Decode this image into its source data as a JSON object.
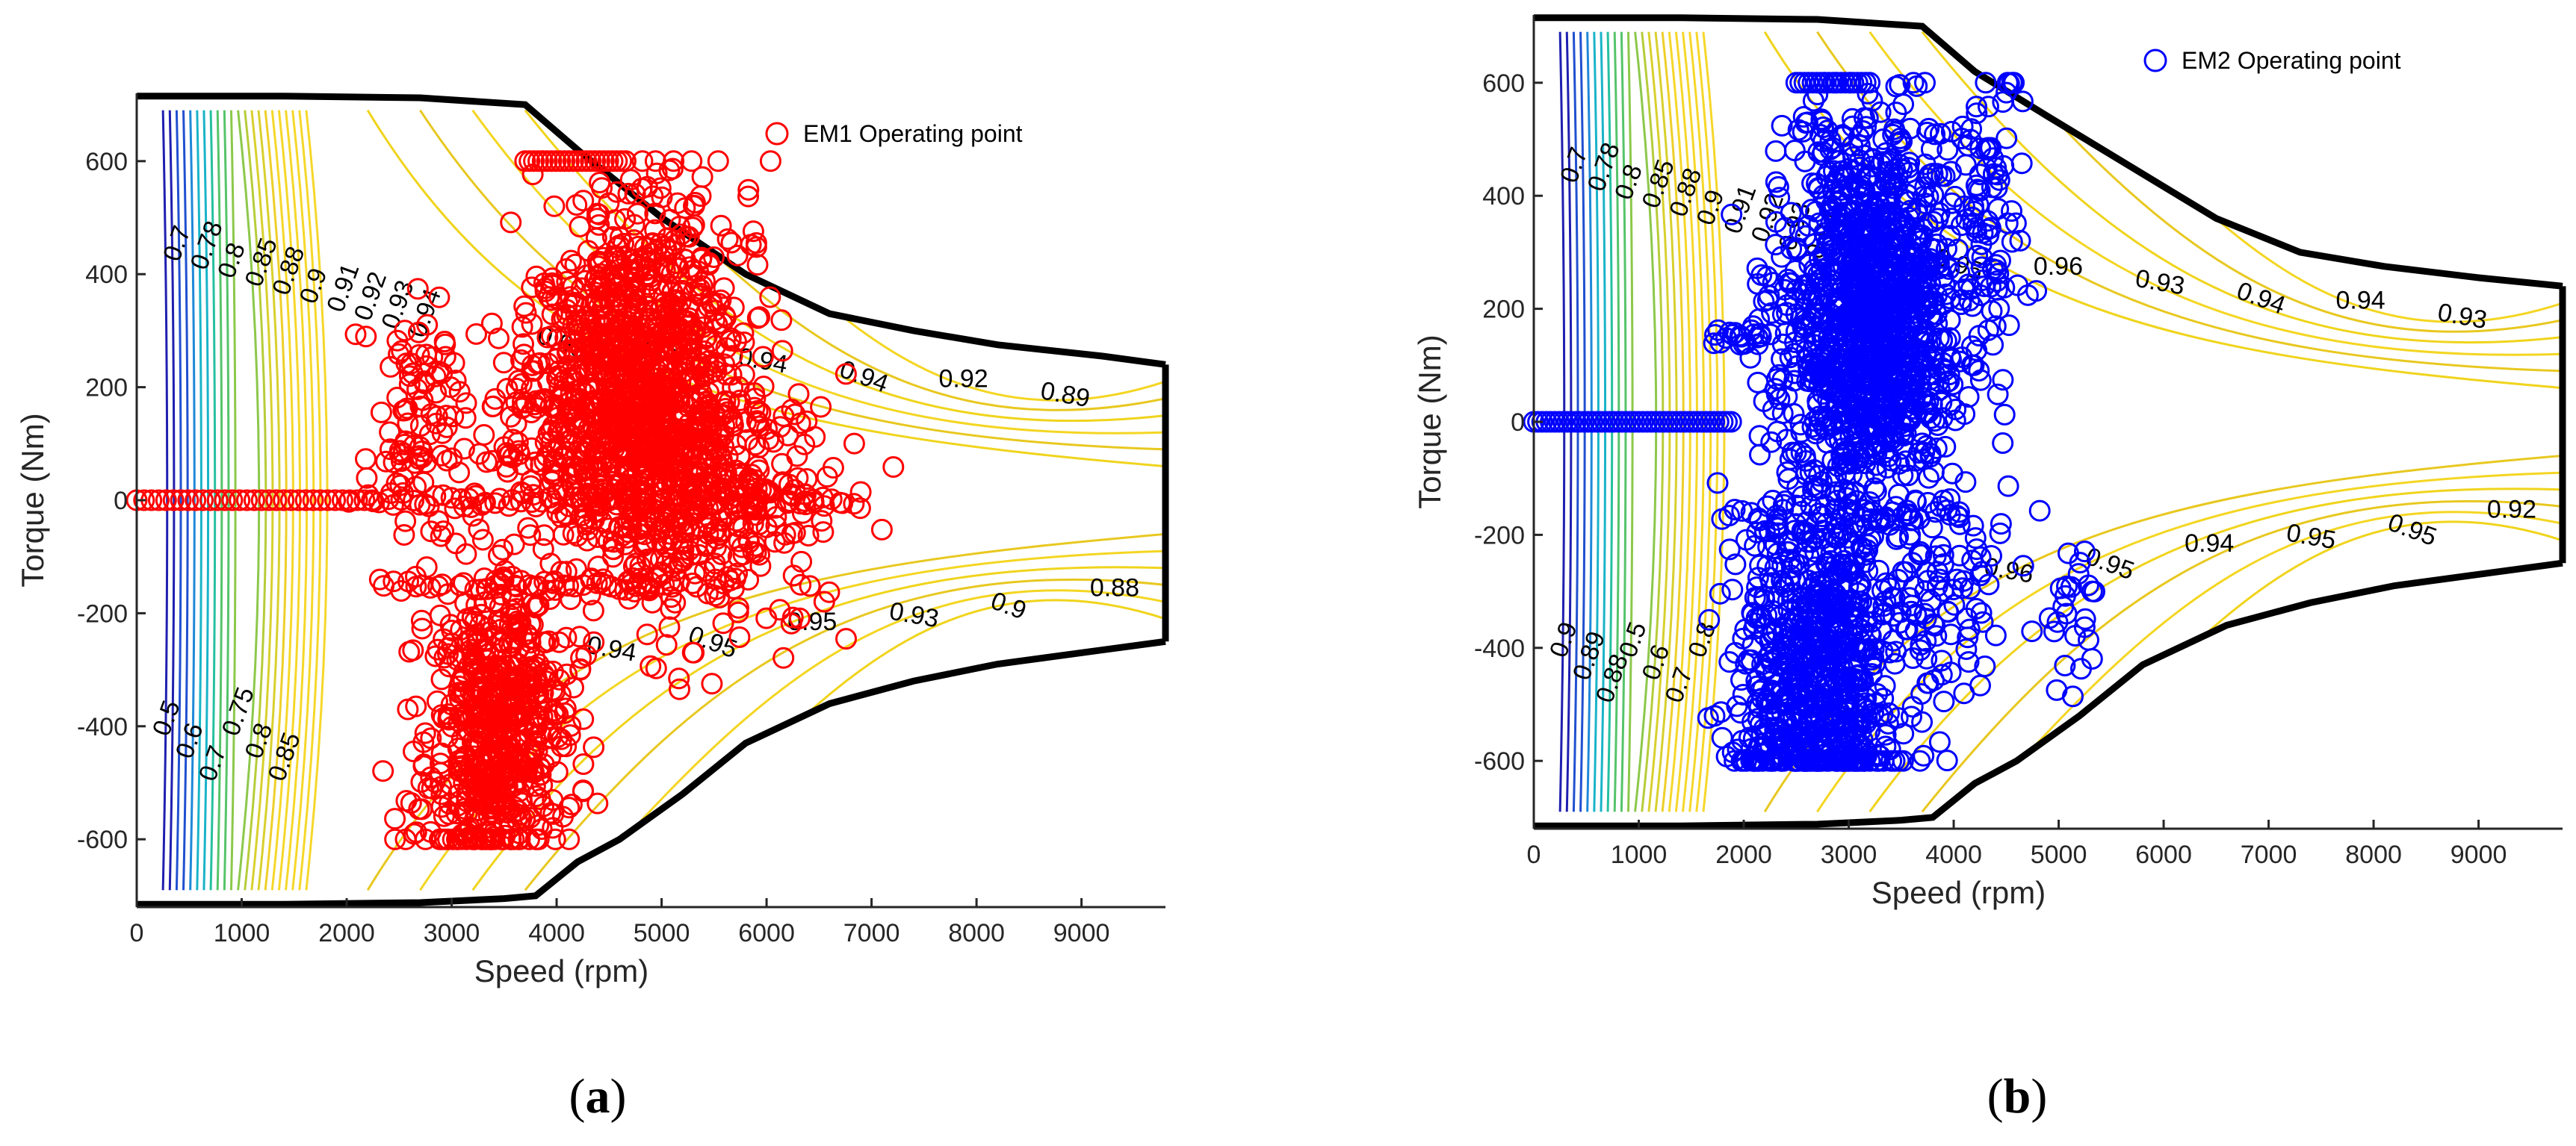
{
  "chart_data": [
    {
      "type": "scatter",
      "panel_label": "a",
      "xlabel": "Speed (rpm)",
      "ylabel": "Torque (Nm)",
      "xlim": [
        0,
        9800
      ],
      "ylim": [
        -720,
        720
      ],
      "xticks": [
        0,
        1000,
        2000,
        3000,
        4000,
        5000,
        6000,
        7000,
        8000,
        9000
      ],
      "yticks": [
        -600,
        -400,
        -200,
        0,
        200,
        400,
        600
      ],
      "legend": "top-right",
      "marker_color": "#ff0000",
      "series": [
        {
          "name": "EM1 Operating point",
          "points_summary": {
            "zero_torque_line": {
              "speed_from": 0,
              "speed_to": 2300,
              "torque": 0
            },
            "dense_cluster_center": {
              "speed": 4700,
              "torque": 170
            },
            "braking_line": {
              "speed_from": 2300,
              "speed_to": 5200,
              "torque": -150
            },
            "lower_cluster_center": {
              "speed": 3500,
              "torque": -380
            },
            "max_torque": 600,
            "min_torque": -600
          }
        }
      ],
      "envelope": {
        "upper": [
          [
            0,
            715
          ],
          [
            1400,
            715
          ],
          [
            2700,
            712
          ],
          [
            3700,
            700
          ],
          [
            4200,
            620
          ],
          [
            5000,
            500
          ],
          [
            5800,
            400
          ],
          [
            6600,
            330
          ],
          [
            7400,
            300
          ],
          [
            8200,
            275
          ],
          [
            9200,
            255
          ],
          [
            9800,
            240
          ]
        ],
        "lower": [
          [
            0,
            -715
          ],
          [
            1400,
            -715
          ],
          [
            2700,
            -712
          ],
          [
            3500,
            -705
          ],
          [
            3800,
            -700
          ],
          [
            4200,
            -640
          ],
          [
            4600,
            -600
          ],
          [
            5200,
            -520
          ],
          [
            5800,
            -430
          ],
          [
            6600,
            -360
          ],
          [
            7400,
            -320
          ],
          [
            8200,
            -290
          ],
          [
            9200,
            -265
          ],
          [
            9800,
            -250
          ]
        ]
      },
      "contour_labels": [
        "0.7",
        "0.78",
        "0.8",
        "0.85",
        "0.88",
        "0.9",
        "0.91",
        "0.92",
        "0.93",
        "0.94",
        "0.93",
        "0.94",
        "0.95",
        "0.95",
        "0.94",
        "0.95",
        "0.94",
        "0.93",
        "0.92",
        "0.9",
        "0.89",
        "0.88",
        "0.5",
        "0.6",
        "0.7",
        "0.75",
        "0.8",
        "0.85"
      ]
    },
    {
      "type": "scatter",
      "panel_label": "b",
      "xlabel": "Speed (rpm)",
      "ylabel": "Torque (Nm)",
      "xlim": [
        0,
        9800
      ],
      "ylim": [
        -720,
        720
      ],
      "xticks": [
        0,
        1000,
        2000,
        3000,
        4000,
        5000,
        6000,
        7000,
        8000,
        9000
      ],
      "yticks": [
        -600,
        -400,
        -200,
        0,
        200,
        400,
        600
      ],
      "legend": "top-right",
      "marker_color": "#0000ff",
      "series": [
        {
          "name": "EM2 Operating point",
          "points_summary": {
            "zero_torque_line": {
              "speed_from": 0,
              "speed_to": 1900,
              "torque": 0
            },
            "dense_cluster_center": {
              "speed": 3200,
              "torque": 150
            },
            "braking_line": {
              "speed_from": 1800,
              "speed_to": 4100,
              "torque": -160
            },
            "lower_cluster_center": {
              "speed": 2700,
              "torque": -400
            },
            "max_torque": 600,
            "min_torque": -600
          }
        }
      ],
      "envelope": {
        "upper": [
          [
            0,
            715
          ],
          [
            1400,
            715
          ],
          [
            2700,
            712
          ],
          [
            3700,
            700
          ],
          [
            4200,
            620
          ],
          [
            4900,
            540
          ],
          [
            5700,
            450
          ],
          [
            6500,
            360
          ],
          [
            7300,
            300
          ],
          [
            8100,
            275
          ],
          [
            9000,
            255
          ],
          [
            9800,
            240
          ]
        ],
        "lower": [
          [
            0,
            -715
          ],
          [
            1400,
            -715
          ],
          [
            2700,
            -712
          ],
          [
            3500,
            -705
          ],
          [
            3800,
            -700
          ],
          [
            4200,
            -640
          ],
          [
            4600,
            -600
          ],
          [
            5200,
            -520
          ],
          [
            5800,
            -430
          ],
          [
            6600,
            -360
          ],
          [
            7400,
            -320
          ],
          [
            8200,
            -290
          ],
          [
            9200,
            -265
          ],
          [
            9800,
            -250
          ]
        ]
      },
      "contour_labels": [
        "0.7",
        "0.78",
        "0.8",
        "0.85",
        "0.88",
        "0.9",
        "0.91",
        "0.92",
        "0.93",
        "0.94",
        "0.95",
        "0.96",
        "0.96",
        "0.95",
        "0.93",
        "0.94",
        "0.94",
        "0.95",
        "0.94",
        "0.95",
        "0.93",
        "0.92",
        "0.9",
        "0.89",
        "0.88",
        "0.5",
        "0.6",
        "0.7",
        "0.8"
      ]
    }
  ]
}
